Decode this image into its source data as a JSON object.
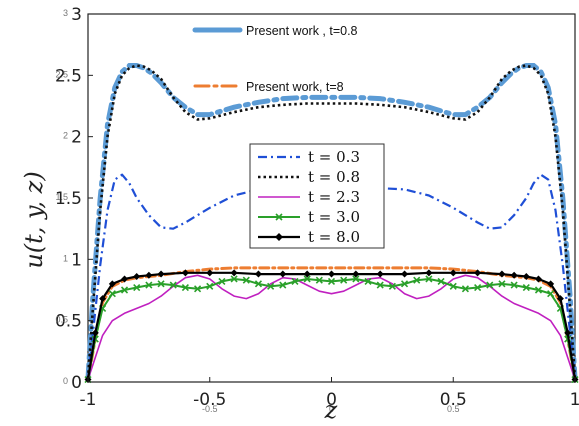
{
  "chart_data": {
    "type": "line",
    "xlabel": "z",
    "ylabel": "u(t, y, z)",
    "xlim": [
      -1,
      1
    ],
    "ylim": [
      0,
      3
    ],
    "x_ticks": [
      "-1",
      "-0.5",
      "0",
      "0.5",
      "1"
    ],
    "x_minor_ticks": [
      "-0.5",
      "0",
      "0.5"
    ],
    "y_ticks": [
      "0",
      "0.5",
      "1",
      "1.5",
      "2",
      "2.5",
      "3"
    ],
    "y_ghost_ticks": [
      "0",
      "0.5",
      "1",
      "1.5",
      "2",
      "2.5",
      "3"
    ],
    "grid": false,
    "top_legend": [
      {
        "label": "Present work , t=0.8",
        "color": "#5b9bd5"
      },
      {
        "label": "Present work, t=8",
        "color": "#ed7d31"
      }
    ],
    "legend_position": "center",
    "series": [
      {
        "name": "t = 0.3",
        "color": "#1f4fd6",
        "style": "dashdot",
        "x": [
          -1,
          -0.98,
          -0.95,
          -0.92,
          -0.89,
          -0.86,
          -0.83,
          -0.8,
          -0.75,
          -0.7,
          -0.65,
          -0.6,
          -0.5,
          -0.4,
          -0.3,
          -0.2,
          -0.1,
          0,
          0.1,
          0.2,
          0.3,
          0.4,
          0.5,
          0.6,
          0.65,
          0.7,
          0.75,
          0.8,
          0.83,
          0.86,
          0.89,
          0.92,
          0.95,
          0.98,
          1
        ],
        "y": [
          0.02,
          0.4,
          0.95,
          1.4,
          1.65,
          1.69,
          1.62,
          1.5,
          1.36,
          1.26,
          1.25,
          1.3,
          1.42,
          1.52,
          1.57,
          1.58,
          1.57,
          1.56,
          1.57,
          1.58,
          1.57,
          1.52,
          1.42,
          1.3,
          1.25,
          1.26,
          1.36,
          1.5,
          1.62,
          1.69,
          1.65,
          1.4,
          0.95,
          0.4,
          0.02
        ]
      },
      {
        "name": "t = 0.8",
        "color": "#111111",
        "style": "dotted",
        "x": [
          -1,
          -0.98,
          -0.95,
          -0.92,
          -0.89,
          -0.86,
          -0.83,
          -0.8,
          -0.77,
          -0.74,
          -0.7,
          -0.65,
          -0.6,
          -0.55,
          -0.5,
          -0.4,
          -0.3,
          -0.2,
          -0.1,
          0,
          0.1,
          0.2,
          0.3,
          0.4,
          0.5,
          0.55,
          0.6,
          0.65,
          0.7,
          0.74,
          0.77,
          0.8,
          0.83,
          0.86,
          0.89,
          0.92,
          0.95,
          0.98,
          1
        ],
        "y": [
          0.03,
          0.6,
          1.4,
          2.0,
          2.35,
          2.5,
          2.56,
          2.58,
          2.57,
          2.54,
          2.47,
          2.32,
          2.2,
          2.14,
          2.15,
          2.2,
          2.24,
          2.26,
          2.27,
          2.27,
          2.27,
          2.26,
          2.24,
          2.2,
          2.15,
          2.14,
          2.2,
          2.32,
          2.47,
          2.54,
          2.57,
          2.58,
          2.56,
          2.5,
          2.35,
          2.0,
          1.4,
          0.6,
          0.03
        ]
      },
      {
        "name": "t = 2.3",
        "color": "#c020c0",
        "style": "solid",
        "x": [
          -1,
          -0.97,
          -0.94,
          -0.9,
          -0.85,
          -0.8,
          -0.75,
          -0.7,
          -0.65,
          -0.6,
          -0.55,
          -0.5,
          -0.45,
          -0.4,
          -0.35,
          -0.3,
          -0.25,
          -0.2,
          -0.15,
          -0.1,
          -0.05,
          0,
          0.05,
          0.1,
          0.15,
          0.2,
          0.25,
          0.3,
          0.35,
          0.4,
          0.45,
          0.5,
          0.55,
          0.6,
          0.65,
          0.7,
          0.75,
          0.8,
          0.85,
          0.9,
          0.94,
          0.97,
          1
        ],
        "y": [
          0.02,
          0.2,
          0.38,
          0.5,
          0.56,
          0.6,
          0.64,
          0.7,
          0.78,
          0.85,
          0.87,
          0.84,
          0.76,
          0.7,
          0.68,
          0.72,
          0.8,
          0.85,
          0.84,
          0.79,
          0.74,
          0.72,
          0.74,
          0.79,
          0.84,
          0.85,
          0.8,
          0.72,
          0.68,
          0.7,
          0.76,
          0.84,
          0.87,
          0.85,
          0.78,
          0.7,
          0.64,
          0.6,
          0.56,
          0.5,
          0.38,
          0.2,
          0.02
        ]
      },
      {
        "name": "t = 3.0",
        "color": "#2aa02a",
        "style": "solid-x",
        "x": [
          -1,
          -0.97,
          -0.94,
          -0.9,
          -0.85,
          -0.8,
          -0.75,
          -0.7,
          -0.65,
          -0.6,
          -0.55,
          -0.5,
          -0.45,
          -0.4,
          -0.35,
          -0.3,
          -0.25,
          -0.2,
          -0.15,
          -0.1,
          -0.05,
          0,
          0.05,
          0.1,
          0.15,
          0.2,
          0.25,
          0.3,
          0.35,
          0.4,
          0.45,
          0.5,
          0.55,
          0.6,
          0.65,
          0.7,
          0.75,
          0.8,
          0.85,
          0.9,
          0.94,
          0.97,
          1
        ],
        "y": [
          0.02,
          0.35,
          0.6,
          0.72,
          0.75,
          0.77,
          0.79,
          0.8,
          0.79,
          0.77,
          0.76,
          0.78,
          0.82,
          0.84,
          0.83,
          0.8,
          0.78,
          0.79,
          0.82,
          0.84,
          0.83,
          0.82,
          0.83,
          0.84,
          0.82,
          0.79,
          0.78,
          0.8,
          0.83,
          0.84,
          0.82,
          0.78,
          0.76,
          0.77,
          0.79,
          0.8,
          0.79,
          0.77,
          0.75,
          0.72,
          0.6,
          0.35,
          0.02
        ]
      },
      {
        "name": "t = 8.0",
        "color": "#000000",
        "style": "solid-diamond",
        "x": [
          -1,
          -0.97,
          -0.94,
          -0.9,
          -0.85,
          -0.8,
          -0.75,
          -0.7,
          -0.6,
          -0.5,
          -0.4,
          -0.3,
          -0.2,
          -0.1,
          0,
          0.1,
          0.2,
          0.3,
          0.4,
          0.5,
          0.6,
          0.7,
          0.75,
          0.8,
          0.85,
          0.9,
          0.94,
          0.97,
          1
        ],
        "y": [
          0.02,
          0.4,
          0.68,
          0.8,
          0.84,
          0.86,
          0.87,
          0.88,
          0.89,
          0.89,
          0.89,
          0.88,
          0.88,
          0.88,
          0.88,
          0.88,
          0.88,
          0.88,
          0.89,
          0.89,
          0.89,
          0.88,
          0.87,
          0.86,
          0.84,
          0.8,
          0.68,
          0.4,
          0.02
        ]
      }
    ],
    "overlays": [
      {
        "name": "Present work , t=0.8",
        "color": "#5b9bd5",
        "style": "thick-dash",
        "x": [
          -1,
          -0.98,
          -0.95,
          -0.92,
          -0.89,
          -0.86,
          -0.83,
          -0.8,
          -0.77,
          -0.74,
          -0.7,
          -0.65,
          -0.6,
          -0.55,
          -0.5,
          -0.4,
          -0.3,
          -0.2,
          -0.1,
          0,
          0.1,
          0.2,
          0.3,
          0.4,
          0.5,
          0.55,
          0.6,
          0.65,
          0.7,
          0.74,
          0.77,
          0.8,
          0.83,
          0.86,
          0.89,
          0.92,
          0.95,
          0.98,
          1
        ],
        "y": [
          0.03,
          0.7,
          1.5,
          2.1,
          2.4,
          2.53,
          2.58,
          2.58,
          2.56,
          2.52,
          2.44,
          2.32,
          2.24,
          2.18,
          2.18,
          2.24,
          2.28,
          2.31,
          2.32,
          2.32,
          2.32,
          2.31,
          2.28,
          2.24,
          2.18,
          2.18,
          2.24,
          2.32,
          2.44,
          2.52,
          2.56,
          2.58,
          2.58,
          2.53,
          2.4,
          2.1,
          1.5,
          0.7,
          0.03
        ]
      },
      {
        "name": "Present work, t=8",
        "color": "#ed7d31",
        "style": "dashdot",
        "x": [
          -1,
          -0.97,
          -0.94,
          -0.9,
          -0.85,
          -0.8,
          -0.7,
          -0.6,
          -0.5,
          -0.4,
          -0.3,
          -0.2,
          -0.1,
          0,
          0.1,
          0.2,
          0.3,
          0.4,
          0.5,
          0.6,
          0.7,
          0.8,
          0.85,
          0.9,
          0.94,
          0.97,
          1
        ],
        "y": [
          0.02,
          0.35,
          0.65,
          0.78,
          0.83,
          0.85,
          0.87,
          0.9,
          0.92,
          0.93,
          0.93,
          0.93,
          0.93,
          0.93,
          0.93,
          0.93,
          0.93,
          0.93,
          0.92,
          0.9,
          0.87,
          0.85,
          0.83,
          0.78,
          0.65,
          0.35,
          0.02
        ]
      }
    ]
  }
}
